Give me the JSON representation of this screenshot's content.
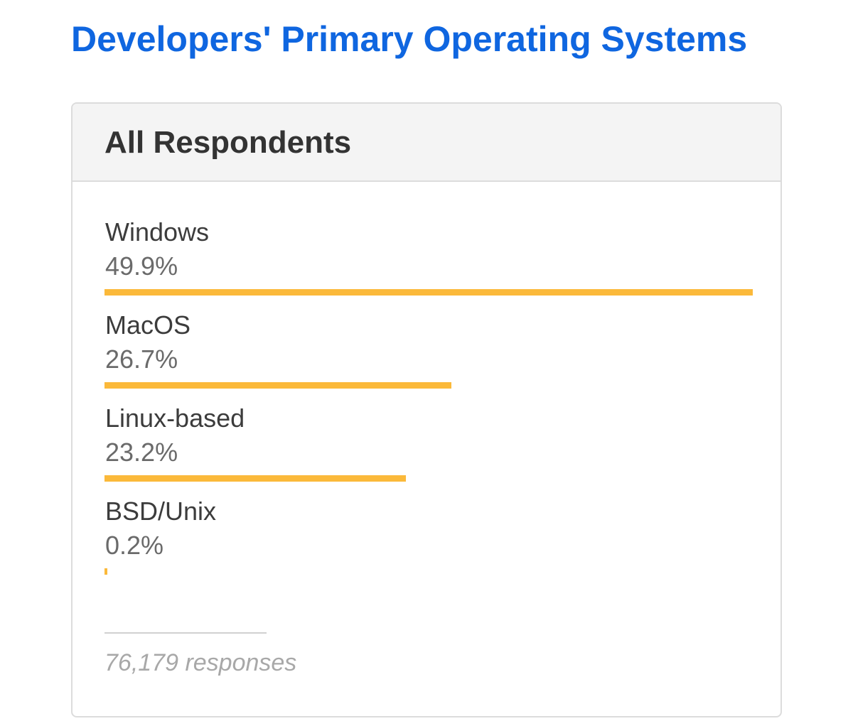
{
  "page": {
    "title": "Developers' Primary Operating Systems"
  },
  "card": {
    "header": "All Respondents",
    "responses": "76,179 responses"
  },
  "colors": {
    "title": "#0f66e0",
    "bar": "#fbb93a"
  },
  "chart_data": {
    "type": "bar",
    "orientation": "horizontal",
    "categories": [
      "Windows",
      "MacOS",
      "Linux-based",
      "BSD/Unix"
    ],
    "values": [
      49.9,
      26.7,
      23.2,
      0.2
    ],
    "value_labels": [
      "49.9%",
      "26.7%",
      "23.2%",
      "0.2%"
    ],
    "unit": "%",
    "title": "Developers' Primary Operating Systems",
    "subtitle": "All Respondents",
    "xlabel": "",
    "ylabel": "",
    "grid": false,
    "legend": "none"
  }
}
